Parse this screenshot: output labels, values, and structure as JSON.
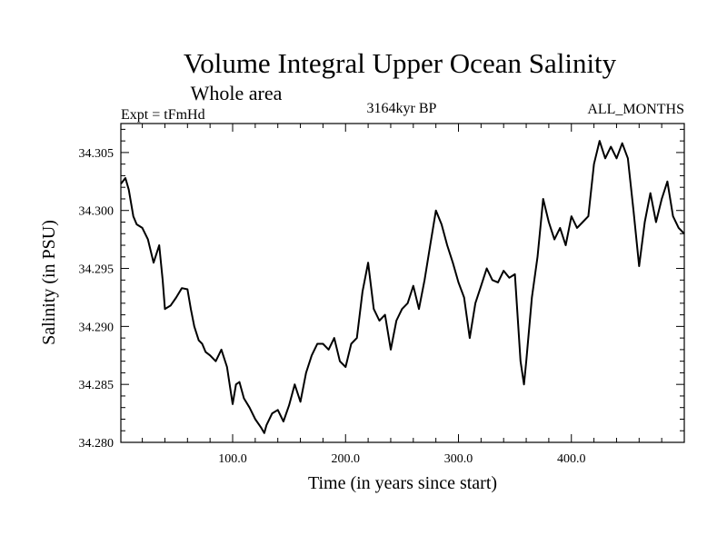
{
  "chart_data": {
    "type": "line",
    "title": "Volume Integral Upper Ocean Salinity",
    "subtitle": "Whole area",
    "left_label": "Expt = tFmHd",
    "center_label": "3164kyr BP",
    "right_label": "ALL_MONTHS",
    "xlabel": "Time (in years since start)",
    "ylabel": "Salinity (in PSU)",
    "xlim": [
      1,
      500
    ],
    "ylim": [
      34.28,
      34.3075
    ],
    "x_ticks": [
      100,
      200,
      300,
      400
    ],
    "x_tick_labels": [
      "100.0",
      "200.0",
      "300.0",
      "400.0"
    ],
    "y_ticks": [
      34.28,
      34.285,
      34.29,
      34.295,
      34.3,
      34.305
    ],
    "y_tick_labels": [
      "34.280",
      "34.285",
      "34.290",
      "34.295",
      "34.300",
      "34.305"
    ],
    "series": [
      {
        "name": "Salinity",
        "x": [
          1,
          5,
          8,
          12,
          15,
          20,
          25,
          30,
          35,
          38,
          40,
          45,
          50,
          55,
          60,
          63,
          66,
          70,
          73,
          76,
          80,
          85,
          90,
          95,
          100,
          103,
          106,
          110,
          115,
          120,
          125,
          128,
          130,
          135,
          140,
          145,
          150,
          155,
          160,
          165,
          170,
          175,
          180,
          185,
          190,
          195,
          200,
          205,
          210,
          215,
          220,
          225,
          230,
          235,
          240,
          245,
          250,
          255,
          260,
          265,
          270,
          275,
          280,
          285,
          290,
          295,
          300,
          305,
          310,
          315,
          320,
          325,
          330,
          335,
          340,
          345,
          350,
          355,
          358,
          360,
          365,
          370,
          375,
          380,
          385,
          390,
          395,
          400,
          405,
          410,
          415,
          420,
          425,
          430,
          435,
          440,
          445,
          450,
          455,
          460,
          465,
          470,
          475,
          480,
          485,
          490,
          495,
          500
        ],
        "values": [
          34.3023,
          34.3028,
          34.3018,
          34.2995,
          34.2988,
          34.2985,
          34.2975,
          34.2955,
          34.297,
          34.294,
          34.2915,
          34.2918,
          34.2925,
          34.2933,
          34.2932,
          34.2915,
          34.29,
          34.2888,
          34.2885,
          34.2878,
          34.2875,
          34.287,
          34.288,
          34.2865,
          34.2833,
          34.285,
          34.2852,
          34.2838,
          34.283,
          34.282,
          34.2813,
          34.2808,
          34.2815,
          34.2825,
          34.2828,
          34.2818,
          34.2832,
          34.285,
          34.2835,
          34.286,
          34.2875,
          34.2885,
          34.2885,
          34.288,
          34.289,
          34.287,
          34.2865,
          34.2885,
          34.289,
          34.293,
          34.2955,
          34.2915,
          34.2905,
          34.291,
          34.288,
          34.2905,
          34.2915,
          34.292,
          34.2935,
          34.2915,
          34.294,
          34.297,
          34.3,
          34.2988,
          34.297,
          34.2955,
          34.2938,
          34.2925,
          34.289,
          34.292,
          34.2935,
          34.295,
          34.294,
          34.2938,
          34.2948,
          34.2942,
          34.2945,
          34.287,
          34.285,
          34.287,
          34.2925,
          34.296,
          34.301,
          34.299,
          34.2975,
          34.2985,
          34.297,
          34.2995,
          34.2985,
          34.299,
          34.2995,
          34.304,
          34.306,
          34.3045,
          34.3055,
          34.3045,
          34.3058,
          34.3045,
          34.3,
          34.2952,
          34.299,
          34.3015,
          34.299,
          34.301,
          34.3025,
          34.2995,
          34.2985,
          34.298
        ]
      }
    ]
  }
}
